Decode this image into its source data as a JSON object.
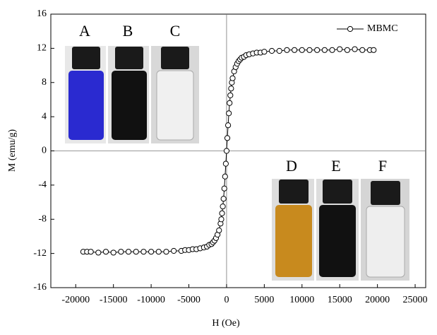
{
  "chart_data": {
    "type": "line",
    "x_label": "H (Oe)",
    "y_label": "M (emu/g)",
    "xlim": [
      -23300,
      26400
    ],
    "ylim": [
      -16,
      16
    ],
    "xticks": [
      -20000,
      -15000,
      -10000,
      -5000,
      0,
      5000,
      10000,
      15000,
      20000,
      25000
    ],
    "yticks": [
      -16,
      -12,
      -8,
      -4,
      0,
      4,
      8,
      12,
      16
    ],
    "series": [
      {
        "name": "MBMC",
        "color": "#000000",
        "x": [
          -19000,
          -18500,
          -18000,
          -17000,
          -16000,
          -15000,
          -14000,
          -13000,
          -12000,
          -11000,
          -10000,
          -9000,
          -8000,
          -7000,
          -6000,
          -5500,
          -5000,
          -4500,
          -4000,
          -3500,
          -3000,
          -2600,
          -2300,
          -2000,
          -1800,
          -1600,
          -1400,
          -1200,
          -1000,
          -800,
          -700,
          -600,
          -500,
          -400,
          -300,
          -200,
          -100,
          0,
          100,
          200,
          300,
          400,
          500,
          600,
          700,
          800,
          1000,
          1200,
          1400,
          1600,
          1800,
          2000,
          2300,
          2600,
          3000,
          3500,
          4000,
          4500,
          5000,
          6000,
          7000,
          8000,
          9000,
          10000,
          11000,
          12000,
          13000,
          14000,
          15000,
          16000,
          17000,
          18000,
          19000,
          19500
        ],
        "values": [
          -11.8,
          -11.8,
          -11.8,
          -11.9,
          -11.8,
          -11.9,
          -11.8,
          -11.8,
          -11.8,
          -11.8,
          -11.8,
          -11.8,
          -11.8,
          -11.7,
          -11.7,
          -11.6,
          -11.6,
          -11.5,
          -11.5,
          -11.4,
          -11.3,
          -11.2,
          -11.0,
          -10.9,
          -10.7,
          -10.5,
          -10.2,
          -9.8,
          -9.3,
          -8.5,
          -8.0,
          -7.3,
          -6.5,
          -5.6,
          -4.4,
          -3.0,
          -1.5,
          0,
          1.5,
          3.0,
          4.4,
          5.6,
          6.5,
          7.3,
          8.0,
          8.5,
          9.3,
          9.8,
          10.2,
          10.5,
          10.7,
          10.9,
          11.0,
          11.2,
          11.3,
          11.4,
          11.5,
          11.5,
          11.6,
          11.7,
          11.7,
          11.8,
          11.8,
          11.8,
          11.8,
          11.8,
          11.8,
          11.8,
          11.9,
          11.8,
          11.9,
          11.8,
          11.8,
          11.8
        ]
      }
    ],
    "annotations": [
      "A",
      "B",
      "C",
      "D",
      "E",
      "F"
    ]
  }
}
